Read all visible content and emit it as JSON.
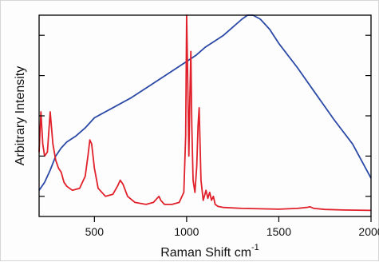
{
  "chart_data": {
    "type": "line",
    "title": "",
    "xlabel": "Raman Shift cm",
    "xlabel_superscript": "-1",
    "ylabel": "Arbitrary Intensity",
    "xlim": [
      200,
      2000
    ],
    "ylim": [
      0,
      1
    ],
    "x_ticks": [
      500,
      1000,
      1500,
      2000
    ],
    "x_tick_labels": [
      "500",
      "1000",
      "1500",
      "2000"
    ],
    "y_tick_count": 5,
    "y_tick_labels_visible": false,
    "grid": false,
    "legend": "none",
    "series": [
      {
        "color": "#2b49a6",
        "x": [
          200,
          230,
          260,
          290,
          320,
          350,
          400,
          450,
          500,
          600,
          700,
          800,
          900,
          1000,
          1050,
          1100,
          1150,
          1200,
          1250,
          1300,
          1330,
          1360,
          1380,
          1400,
          1450,
          1500,
          1600,
          1700,
          1800,
          1900,
          2000
        ],
        "y": [
          0.13,
          0.17,
          0.23,
          0.3,
          0.34,
          0.37,
          0.4,
          0.44,
          0.49,
          0.54,
          0.59,
          0.65,
          0.71,
          0.77,
          0.8,
          0.84,
          0.87,
          0.9,
          0.94,
          0.98,
          1.0,
          1.0,
          0.99,
          0.98,
          0.93,
          0.86,
          0.74,
          0.61,
          0.48,
          0.36,
          0.19
        ]
      },
      {
        "color": "#e0202a",
        "x": [
          200,
          210,
          220,
          230,
          245,
          260,
          275,
          290,
          305,
          320,
          335,
          350,
          380,
          420,
          450,
          465,
          475,
          485,
          500,
          520,
          560,
          600,
          625,
          640,
          655,
          680,
          720,
          780,
          820,
          840,
          850,
          860,
          880,
          920,
          960,
          985,
          995,
          1000,
          1005,
          1012,
          1018,
          1023,
          1028,
          1035,
          1045,
          1055,
          1062,
          1068,
          1072,
          1078,
          1090,
          1105,
          1115,
          1125,
          1135,
          1145,
          1155,
          1170,
          1200,
          1300,
          1400,
          1500,
          1600,
          1650,
          1670,
          1690,
          1750,
          1850,
          2000
        ],
        "y": [
          0.32,
          0.52,
          0.36,
          0.3,
          0.32,
          0.52,
          0.36,
          0.28,
          0.24,
          0.22,
          0.17,
          0.15,
          0.13,
          0.14,
          0.2,
          0.3,
          0.38,
          0.36,
          0.24,
          0.14,
          0.1,
          0.11,
          0.15,
          0.18,
          0.16,
          0.1,
          0.07,
          0.06,
          0.07,
          0.09,
          0.1,
          0.08,
          0.06,
          0.06,
          0.07,
          0.12,
          0.4,
          1.0,
          0.75,
          0.3,
          0.6,
          0.82,
          0.45,
          0.18,
          0.12,
          0.25,
          0.45,
          0.54,
          0.4,
          0.18,
          0.08,
          0.13,
          0.09,
          0.12,
          0.08,
          0.1,
          0.06,
          0.05,
          0.045,
          0.04,
          0.038,
          0.036,
          0.04,
          0.045,
          0.048,
          0.04,
          0.035,
          0.032,
          0.03
        ]
      }
    ]
  }
}
